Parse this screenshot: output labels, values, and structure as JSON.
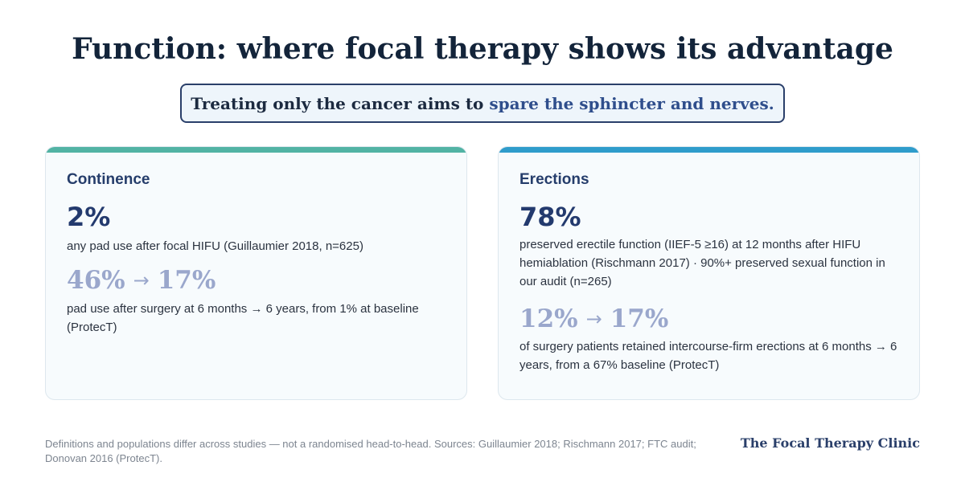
{
  "header": {
    "title": "Function: where focal therapy shows its advantage",
    "subtitle_lead": "Treating only the cancer aims to",
    "subtitle_highlight": "spare the sphincter and nerves."
  },
  "cards": [
    {
      "title": "Continence",
      "accent_color": "#52b3a4",
      "headline_value": "2%",
      "headline_desc": "any pad use after focal HIFU (Guillaumier 2018, n=625)",
      "trend_from": "46%",
      "trend_arrow": "→",
      "trend_to": "17%",
      "trend_desc": "pad use after surgery at 6 months → 6 years, from 1% at baseline (ProtecT)"
    },
    {
      "title": "Erections",
      "accent_color": "#2f9ccb",
      "headline_value": "78%",
      "headline_desc": "preserved erectile function (IIEF-5 ≥16) at 12 months after HIFU hemiablation (Rischmann 2017) · 90%+ preserved sexual function in our audit (n=265)",
      "trend_from": "12%",
      "trend_arrow": "→",
      "trend_to": "17%",
      "trend_desc": "of surgery patients retained intercourse-firm erections at 6 months → 6 years, from a 67% baseline (ProtecT)"
    }
  ],
  "footer": {
    "note": "Definitions and populations differ across studies — not a randomised head-to-head. Sources: Guillaumier 2018; Rischmann 2017; FTC audit; Donovan 2016 (ProtecT).",
    "brand": "The Focal Therapy Clinic"
  }
}
